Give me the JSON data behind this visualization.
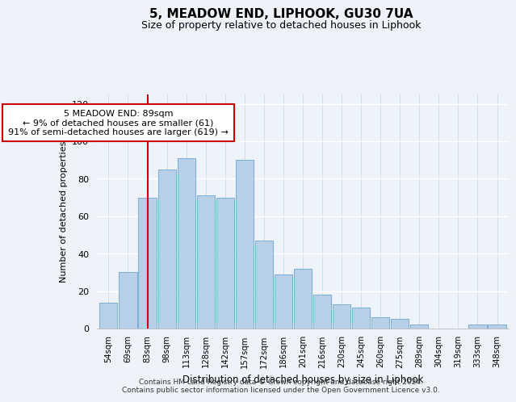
{
  "title": "5, MEADOW END, LIPHOOK, GU30 7UA",
  "subtitle": "Size of property relative to detached houses in Liphook",
  "xlabel": "Distribution of detached houses by size in Liphook",
  "ylabel": "Number of detached properties",
  "categories": [
    "54sqm",
    "69sqm",
    "83sqm",
    "98sqm",
    "113sqm",
    "128sqm",
    "142sqm",
    "157sqm",
    "172sqm",
    "186sqm",
    "201sqm",
    "216sqm",
    "230sqm",
    "245sqm",
    "260sqm",
    "275sqm",
    "289sqm",
    "304sqm",
    "319sqm",
    "333sqm",
    "348sqm"
  ],
  "values": [
    14,
    30,
    70,
    85,
    91,
    71,
    70,
    90,
    47,
    29,
    32,
    18,
    13,
    11,
    6,
    5,
    2,
    0,
    0,
    2,
    2
  ],
  "bar_color": "#b8cfe8",
  "bar_edgecolor": "#7aaed6",
  "vline_x_index": 2,
  "vline_color": "#cc0000",
  "annotation_title": "5 MEADOW END: 89sqm",
  "annotation_line1": "← 9% of detached houses are smaller (61)",
  "annotation_line2": "91% of semi-detached houses are larger (619) →",
  "annotation_box_color": "#ffffff",
  "annotation_box_edgecolor": "#cc0000",
  "ylim": [
    0,
    125
  ],
  "yticks": [
    0,
    20,
    40,
    60,
    80,
    100,
    120
  ],
  "footer1": "Contains HM Land Registry data © Crown copyright and database right 2024.",
  "footer2": "Contains public sector information licensed under the Open Government Licence v3.0.",
  "bg_color": "#eef2f9",
  "grid_color": "#ffffff",
  "vgrid_color": "#d0d8e8"
}
